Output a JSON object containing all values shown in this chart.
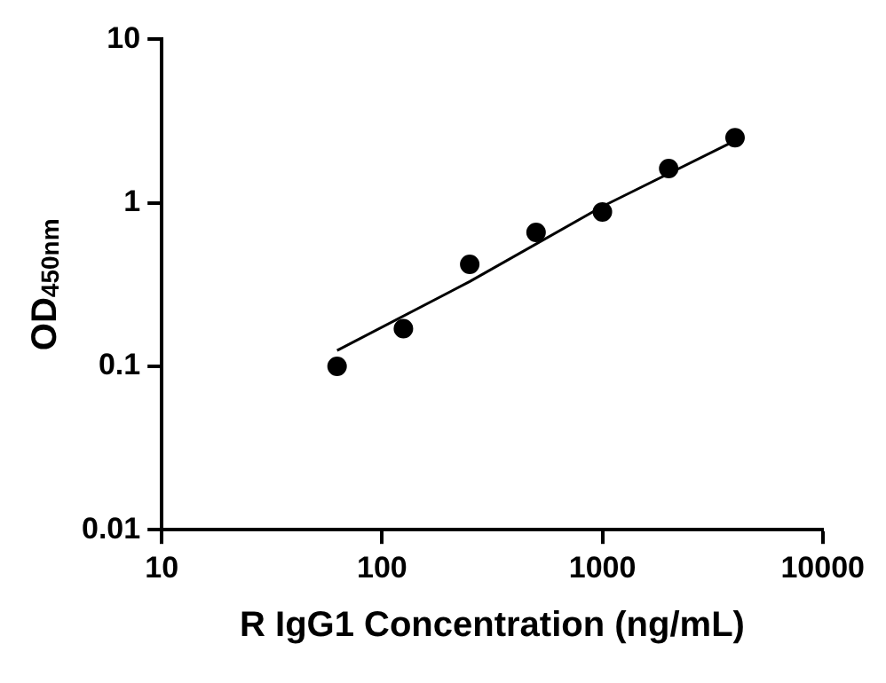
{
  "chart_data": {
    "type": "scatter",
    "xlabel": "R IgG1 Concentration (ng/mL)",
    "ylabel": "OD$_{450nm}$",
    "log": "xy",
    "xlim": [
      10,
      10000
    ],
    "xticks": [
      10,
      100,
      1000,
      10000
    ],
    "ylim": [
      0.01,
      10
    ],
    "yticks": [
      0.01,
      0.1,
      1,
      10
    ],
    "marker": "circle",
    "series": [
      {
        "color": "#000000",
        "x": [
          62.5,
          125,
          250,
          500,
          1000,
          2000,
          4000
        ],
        "values": [
          0.1,
          0.17,
          0.42,
          0.66,
          0.88,
          1.62,
          2.5
        ]
      },
      {
        "type": "line",
        "color": "#000000",
        "marker": "none",
        "x": [
          62.5,
          250,
          1000,
          4000
        ],
        "values": [
          0.125,
          0.33,
          0.95,
          2.4
        ]
      }
    ]
  }
}
